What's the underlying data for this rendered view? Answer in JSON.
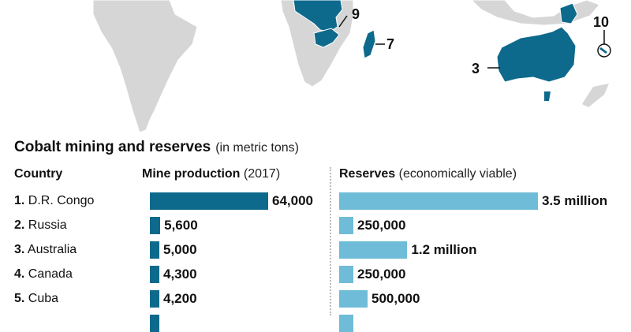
{
  "map": {
    "labels": [
      "9",
      "7",
      "10",
      "3"
    ],
    "colors": {
      "land": "#d6d6d6",
      "highlight": "#0e6a8c",
      "border": "#ffffff"
    }
  },
  "chart_data": {
    "type": "bar",
    "title": "Cobalt mining and reserves",
    "subtitle": "(in metric tons)",
    "columns": {
      "country": "Country",
      "production": "Mine production",
      "production_note": "(2017)",
      "reserves": "Reserves",
      "reserves_note": "(economically viable)"
    },
    "categories": [
      {
        "rank": "1.",
        "name": "D.R. Congo"
      },
      {
        "rank": "2.",
        "name": "Russia"
      },
      {
        "rank": "3.",
        "name": "Australia"
      },
      {
        "rank": "4.",
        "name": "Canada"
      },
      {
        "rank": "5.",
        "name": "Cuba"
      },
      {
        "rank": "",
        "name": ""
      }
    ],
    "series": [
      {
        "name": "Mine production",
        "values": [
          64000,
          5600,
          5000,
          4300,
          4200,
          4000
        ],
        "labels": [
          "64,000",
          "5,600",
          "5,000",
          "4,300",
          "4,200",
          ""
        ],
        "color": "#0e6a8c",
        "max": 64000
      },
      {
        "name": "Reserves",
        "values": [
          3500000,
          250000,
          1200000,
          250000,
          500000,
          150000
        ],
        "labels": [
          "3.5 million",
          "250,000",
          "1.2 million",
          "250,000",
          "500,000",
          ""
        ],
        "color": "#6fbcd8",
        "max": 3500000
      }
    ]
  }
}
